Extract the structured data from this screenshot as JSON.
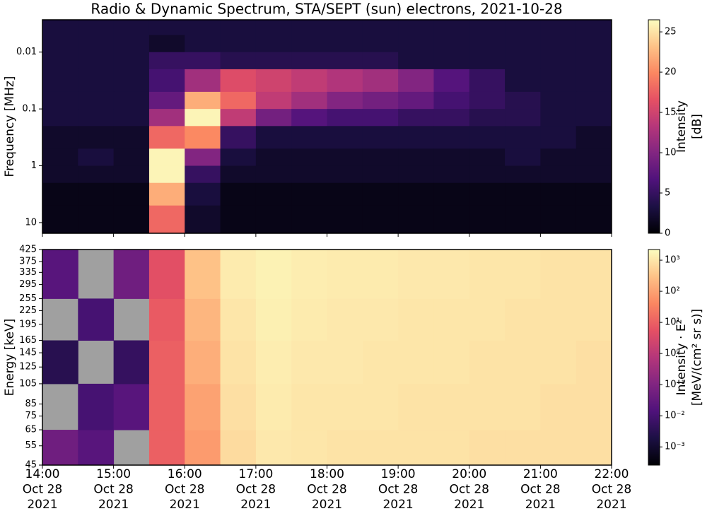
{
  "chart_data": [
    {
      "type": "heatmap",
      "title": "Radio & Dynamic Spectrum, STA/SEPT (sun) electrons, 2021-10-28",
      "ylabel": "Frequency [MHz]",
      "yscale": "log",
      "ylim": [
        15.4,
        0.0027
      ],
      "yticks": [
        0.01,
        0.1,
        1,
        10
      ],
      "xlim": [
        "2021-10-28 14:00",
        "2021-10-28 22:00"
      ],
      "x_edges": [
        "2021-10-28 14:00",
        "2021-10-28 14:30",
        "2021-10-28 15:00",
        "2021-10-28 15:30",
        "2021-10-28 16:00",
        "2021-10-28 16:30",
        "2021-10-28 17:00",
        "2021-10-28 17:30",
        "2021-10-28 18:00",
        "2021-10-28 18:30",
        "2021-10-28 19:00",
        "2021-10-28 19:30",
        "2021-10-28 20:00",
        "2021-10-28 20:30",
        "2021-10-28 21:00",
        "2021-10-28 21:30",
        "2021-10-28 22:00"
      ],
      "y_edges": [
        0.0027,
        0.005,
        0.01,
        0.02,
        0.05,
        0.1,
        0.2,
        0.5,
        1,
        2,
        5,
        15.4
      ],
      "z": [
        [
          3,
          3,
          3,
          3,
          3,
          3,
          3,
          3,
          3,
          3,
          3,
          3,
          3,
          3,
          3,
          3
        ],
        [
          3,
          3,
          3,
          2,
          3,
          3,
          3,
          3,
          3,
          3,
          3,
          3,
          3,
          3,
          3,
          3
        ],
        [
          3,
          3,
          3,
          5,
          5,
          4,
          4,
          4,
          4,
          4,
          3,
          3,
          3,
          3,
          3,
          3
        ],
        [
          3,
          3,
          3,
          6,
          12,
          16,
          15,
          14,
          13,
          12,
          10,
          7,
          5,
          3,
          3,
          3
        ],
        [
          3,
          3,
          3,
          8,
          22,
          18,
          14,
          12,
          10,
          9,
          8,
          6,
          5,
          4,
          3,
          3
        ],
        [
          3,
          3,
          3,
          12,
          26,
          14,
          9,
          7,
          6,
          6,
          5,
          5,
          4,
          4,
          3,
          3
        ],
        [
          2,
          2,
          2,
          18,
          20,
          5,
          3,
          3,
          3,
          3,
          3,
          3,
          3,
          3,
          3,
          2
        ],
        [
          2,
          3,
          2,
          26,
          10,
          3,
          2,
          2,
          2,
          2,
          2,
          2,
          2,
          3,
          2,
          2
        ],
        [
          2,
          2,
          2,
          26,
          5,
          2,
          2,
          2,
          2,
          2,
          2,
          2,
          2,
          2,
          2,
          2
        ],
        [
          1,
          1,
          1,
          22,
          3,
          1,
          1,
          1,
          1,
          1,
          1,
          1,
          1,
          1,
          1,
          1
        ],
        [
          1,
          1,
          1,
          18,
          2,
          1,
          1,
          1,
          1,
          1,
          1,
          1,
          1,
          1,
          1,
          1
        ]
      ],
      "colormap": "magma",
      "zscale": "linear",
      "zlim": [
        0,
        26.5
      ],
      "zticks": [
        0,
        5,
        10,
        15,
        20,
        25
      ],
      "colorbar_label": [
        "Intensity",
        "[dB]"
      ]
    },
    {
      "type": "heatmap",
      "ylabel": "Energy [keV]",
      "yscale": "log",
      "ylim": [
        45,
        425
      ],
      "yticks": [
        45,
        55,
        65,
        75,
        85,
        105,
        125,
        145,
        165,
        195,
        225,
        255,
        295,
        335,
        375,
        425
      ],
      "xlim": [
        "2021-10-28 14:00",
        "2021-10-28 22:00"
      ],
      "xticks": [
        {
          "value": "2021-10-28 14:00",
          "label": [
            "14:00",
            "Oct 28",
            "2021"
          ]
        },
        {
          "value": "2021-10-28 15:00",
          "label": [
            "15:00",
            "Oct 28",
            "2021"
          ]
        },
        {
          "value": "2021-10-28 16:00",
          "label": [
            "16:00",
            "Oct 28",
            "2021"
          ]
        },
        {
          "value": "2021-10-28 17:00",
          "label": [
            "17:00",
            "Oct 28",
            "2021"
          ]
        },
        {
          "value": "2021-10-28 18:00",
          "label": [
            "18:00",
            "Oct 28",
            "2021"
          ]
        },
        {
          "value": "2021-10-28 19:00",
          "label": [
            "19:00",
            "Oct 28",
            "2021"
          ]
        },
        {
          "value": "2021-10-28 20:00",
          "label": [
            "20:00",
            "Oct 28",
            "2021"
          ]
        },
        {
          "value": "2021-10-28 21:00",
          "label": [
            "21:00",
            "Oct 28",
            "2021"
          ]
        },
        {
          "value": "2021-10-28 22:00",
          "label": [
            "22:00",
            "Oct 28",
            "2021"
          ]
        }
      ],
      "x_edges": [
        "2021-10-28 14:00",
        "2021-10-28 14:30",
        "2021-10-28 15:00",
        "2021-10-28 15:30",
        "2021-10-28 16:00",
        "2021-10-28 16:30",
        "2021-10-28 17:00",
        "2021-10-28 17:30",
        "2021-10-28 18:00",
        "2021-10-28 18:30",
        "2021-10-28 19:00",
        "2021-10-28 19:30",
        "2021-10-28 20:00",
        "2021-10-28 20:30",
        "2021-10-28 21:00",
        "2021-10-28 21:30",
        "2021-10-28 22:00"
      ],
      "y_edges": [
        45,
        65,
        105,
        165,
        255,
        425
      ],
      "z": [
        [
          0.05,
          0.02,
          null,
          10,
          80,
          700,
          1100,
          1000,
          900,
          900,
          900,
          900,
          800,
          800,
          800,
          800
        ],
        [
          null,
          0.01,
          0.02,
          10,
          100,
          800,
          1200,
          1000,
          1000,
          1000,
          900,
          900,
          900,
          900,
          800,
          800
        ],
        [
          0.003,
          null,
          0.005,
          10,
          150,
          900,
          1300,
          1100,
          1100,
          1000,
          1000,
          1000,
          900,
          900,
          900,
          800
        ],
        [
          null,
          0.01,
          null,
          8,
          200,
          1000,
          1400,
          1200,
          1100,
          1100,
          1000,
          1000,
          1000,
          900,
          900,
          900
        ],
        [
          0.02,
          null,
          0.05,
          5,
          300,
          1200,
          1500,
          1300,
          1200,
          1200,
          1100,
          1100,
          1000,
          1000,
          900,
          900
        ]
      ],
      "colormap": "magma",
      "zscale": "log",
      "zlim": [
        0.00026,
        2200
      ],
      "zticks": [
        {
          "value": 0.001,
          "label": "10⁻³"
        },
        {
          "value": 0.01,
          "label": "10⁻²"
        },
        {
          "value": 0.1,
          "label": "10⁻¹"
        },
        {
          "value": 1,
          "label": "10⁰"
        },
        {
          "value": 10,
          "label": "10¹"
        },
        {
          "value": 100,
          "label": "10²"
        },
        {
          "value": 1000,
          "label": "10³"
        }
      ],
      "colorbar_label": [
        "Intensity · E²",
        "[MeV/(cm² sr s)]"
      ]
    }
  ]
}
